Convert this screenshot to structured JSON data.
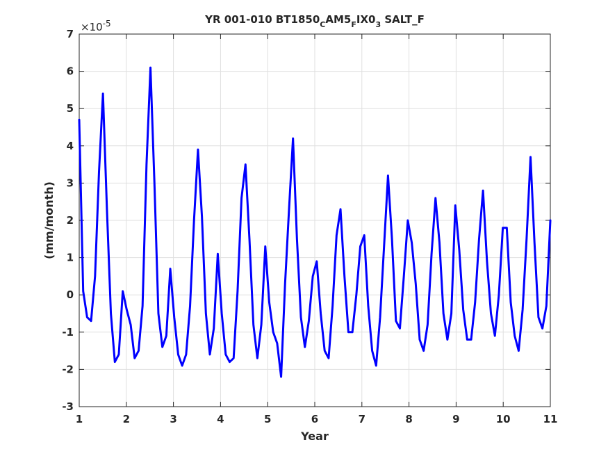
{
  "chart_data": {
    "type": "line",
    "title_parts": [
      "YR 001-010 BT1850",
      "C",
      "AM5",
      "F",
      "IX0",
      "3",
      " SALT_F"
    ],
    "xlabel": "Year",
    "ylabel": "(mm/month)",
    "y_exponent_label": "×10",
    "y_exponent_power": "-5",
    "xlim": [
      1,
      11
    ],
    "ylim": [
      -3,
      7
    ],
    "x_ticks": [
      1,
      2,
      3,
      4,
      5,
      6,
      7,
      8,
      9,
      10,
      11
    ],
    "y_ticks": [
      -3,
      -2,
      -1,
      0,
      1,
      2,
      3,
      4,
      5,
      6,
      7
    ],
    "grid": true,
    "series_color": "#0000ff",
    "series": [
      {
        "values": [
          4.7,
          0.1,
          -0.6,
          -0.7,
          0.5,
          3.3,
          5.4,
          2.3,
          -0.5,
          -1.8,
          -1.6,
          0.1,
          -0.4,
          -0.8,
          -1.7,
          -1.5,
          -0.3,
          3.5,
          6.1,
          3.0,
          -0.5,
          -1.4,
          -1.1,
          0.7,
          -0.6,
          -1.6,
          -1.9,
          -1.6,
          -0.3,
          2.0,
          3.9,
          2.1,
          -0.5,
          -1.6,
          -0.9,
          1.1,
          -0.5,
          -1.6,
          -1.8,
          -1.7,
          0.1,
          2.6,
          3.5,
          1.5,
          -0.8,
          -1.7,
          -0.8,
          1.3,
          -0.2,
          -1.0,
          -1.3,
          -2.2,
          0.3,
          2.3,
          4.2,
          1.5,
          -0.6,
          -1.4,
          -0.7,
          0.5,
          0.9,
          -0.5,
          -1.5,
          -1.7,
          -0.3,
          1.6,
          2.3,
          0.5,
          -1.0,
          -1.0,
          0.0,
          1.3,
          1.6,
          -0.3,
          -1.5,
          -1.9,
          -0.6,
          1.3,
          3.2,
          1.5,
          -0.7,
          -0.9,
          0.5,
          2.0,
          1.4,
          0.3,
          -1.2,
          -1.5,
          -0.8,
          1.1,
          2.6,
          1.4,
          -0.5,
          -1.2,
          -0.5,
          2.4,
          1.2,
          -0.4,
          -1.2,
          -1.2,
          -0.2,
          1.5,
          2.8,
          0.9,
          -0.5,
          -1.1,
          0.0,
          1.8,
          1.8,
          -0.2,
          -1.1,
          -1.5,
          -0.4,
          1.5,
          3.7,
          1.4,
          -0.6,
          -0.9,
          -0.3,
          2.0
        ]
      }
    ]
  }
}
